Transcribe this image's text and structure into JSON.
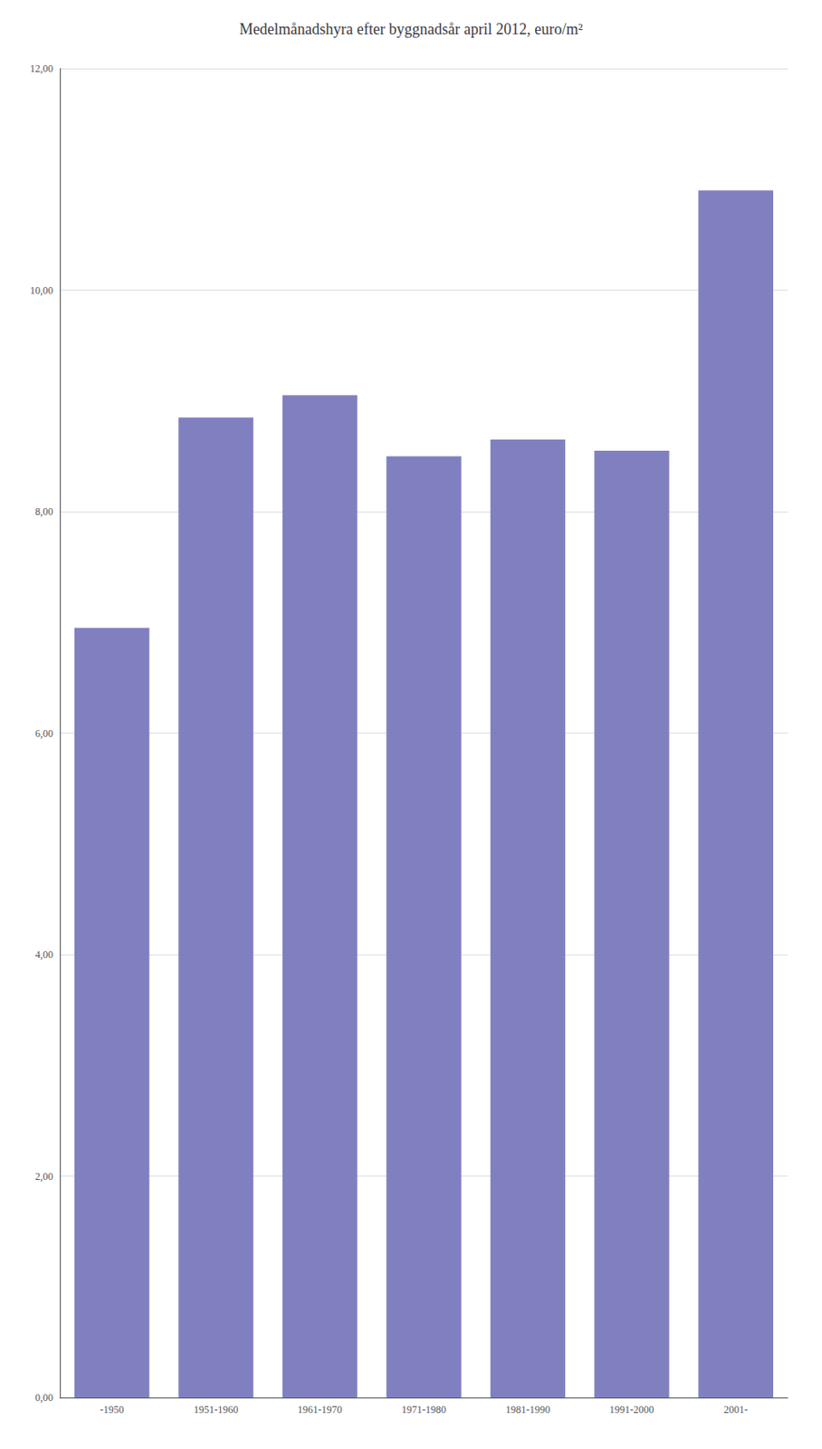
{
  "chart_data": {
    "type": "bar",
    "title": "Medelmånadshyra efter byggnadsår april 2012, euro/m²",
    "categories": [
      "-1950",
      "1951-1960",
      "1961-1970",
      "1971-1980",
      "1981-1990",
      "1991-2000",
      "2001-"
    ],
    "values": [
      6.95,
      8.85,
      9.05,
      8.5,
      8.65,
      8.55,
      10.9
    ],
    "color": "#8080c0",
    "ylim": [
      0,
      12
    ],
    "yticks": [
      {
        "value": 0,
        "label": "0,00"
      },
      {
        "value": 2,
        "label": "2,00"
      },
      {
        "value": 4,
        "label": "4,00"
      },
      {
        "value": 6,
        "label": "6,00"
      },
      {
        "value": 8,
        "label": "8,00"
      },
      {
        "value": 10,
        "label": "10,00"
      },
      {
        "value": 12,
        "label": "12,00"
      }
    ],
    "grid": true
  }
}
